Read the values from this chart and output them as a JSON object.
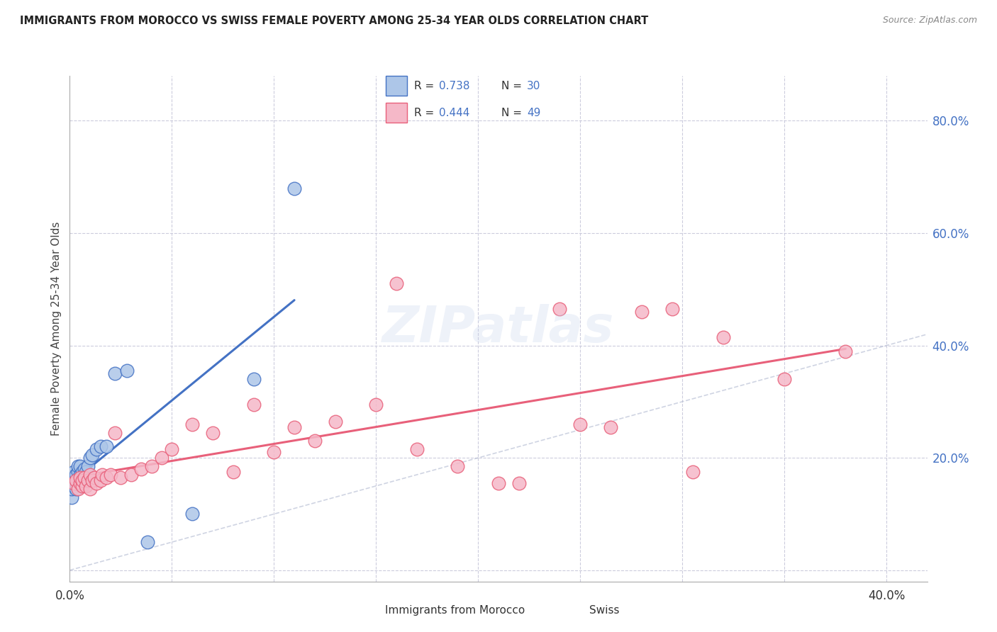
{
  "title": "IMMIGRANTS FROM MOROCCO VS SWISS FEMALE POVERTY AMONG 25-34 YEAR OLDS CORRELATION CHART",
  "source": "Source: ZipAtlas.com",
  "ylabel": "Female Poverty Among 25-34 Year Olds",
  "xlim": [
    0.0,
    0.42
  ],
  "ylim": [
    -0.02,
    0.88
  ],
  "morocco_R": 0.738,
  "morocco_N": 30,
  "swiss_R": 0.444,
  "swiss_N": 49,
  "morocco_color": "#adc6e8",
  "swiss_color": "#f5b8c8",
  "morocco_line_color": "#4472c4",
  "swiss_line_color": "#e8607a",
  "watermark": "ZIPatlas",
  "legend_R_color": "#4472c4",
  "legend_label_color": "#333333",
  "right_tick_color": "#4472c4",
  "morocco_x": [
    0.001,
    0.001,
    0.002,
    0.002,
    0.002,
    0.003,
    0.003,
    0.003,
    0.004,
    0.004,
    0.004,
    0.005,
    0.005,
    0.005,
    0.006,
    0.006,
    0.007,
    0.008,
    0.009,
    0.01,
    0.011,
    0.013,
    0.015,
    0.018,
    0.022,
    0.028,
    0.038,
    0.06,
    0.09,
    0.11
  ],
  "morocco_y": [
    0.13,
    0.145,
    0.15,
    0.16,
    0.175,
    0.145,
    0.155,
    0.17,
    0.16,
    0.175,
    0.185,
    0.155,
    0.17,
    0.185,
    0.165,
    0.175,
    0.18,
    0.175,
    0.185,
    0.2,
    0.205,
    0.215,
    0.22,
    0.22,
    0.35,
    0.355,
    0.05,
    0.1,
    0.34,
    0.68
  ],
  "swiss_x": [
    0.002,
    0.003,
    0.004,
    0.005,
    0.005,
    0.006,
    0.006,
    0.007,
    0.008,
    0.009,
    0.01,
    0.01,
    0.011,
    0.012,
    0.013,
    0.015,
    0.016,
    0.018,
    0.02,
    0.022,
    0.025,
    0.03,
    0.035,
    0.04,
    0.045,
    0.05,
    0.06,
    0.07,
    0.08,
    0.09,
    0.1,
    0.11,
    0.12,
    0.13,
    0.15,
    0.16,
    0.17,
    0.19,
    0.21,
    0.22,
    0.24,
    0.25,
    0.265,
    0.28,
    0.295,
    0.305,
    0.32,
    0.35,
    0.38
  ],
  "swiss_y": [
    0.155,
    0.16,
    0.145,
    0.155,
    0.165,
    0.15,
    0.16,
    0.165,
    0.15,
    0.16,
    0.145,
    0.17,
    0.16,
    0.165,
    0.155,
    0.16,
    0.17,
    0.165,
    0.17,
    0.245,
    0.165,
    0.17,
    0.18,
    0.185,
    0.2,
    0.215,
    0.26,
    0.245,
    0.175,
    0.295,
    0.21,
    0.255,
    0.23,
    0.265,
    0.295,
    0.51,
    0.215,
    0.185,
    0.155,
    0.155,
    0.465,
    0.26,
    0.255,
    0.46,
    0.465,
    0.175,
    0.415,
    0.34,
    0.39
  ]
}
